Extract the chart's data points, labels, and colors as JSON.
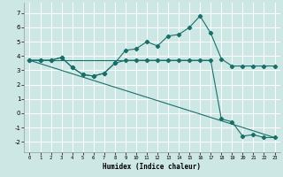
{
  "xlabel": "Humidex (Indice chaleur)",
  "xlim": [
    -0.5,
    23.5
  ],
  "ylim": [
    -2.7,
    7.7
  ],
  "yticks": [
    -2,
    -1,
    0,
    1,
    2,
    3,
    4,
    5,
    6,
    7
  ],
  "xticks": [
    0,
    1,
    2,
    3,
    4,
    5,
    6,
    7,
    8,
    9,
    10,
    11,
    12,
    13,
    14,
    15,
    16,
    17,
    18,
    19,
    20,
    21,
    22,
    23
  ],
  "bg_color": "#cde8e4",
  "grid_color": "#ffffff",
  "line_color": "#1a6e6a",
  "series": [
    {
      "x": [
        0,
        1,
        2,
        3,
        4,
        5,
        6,
        7,
        8,
        9,
        10,
        11,
        12,
        13,
        14,
        15,
        16,
        17,
        18,
        19,
        20,
        21,
        22,
        23
      ],
      "y": [
        3.7,
        3.7,
        3.7,
        3.9,
        3.2,
        2.7,
        2.6,
        2.8,
        3.5,
        4.4,
        4.5,
        5.0,
        4.7,
        5.4,
        5.5,
        6.0,
        6.8,
        5.6,
        3.8,
        3.3,
        3.3,
        3.3,
        3.3,
        3.3
      ],
      "has_markers": true
    },
    {
      "x": [
        0,
        1,
        2,
        3,
        4,
        5,
        6,
        7,
        8,
        9,
        10,
        11,
        12,
        13,
        14,
        15,
        16,
        17,
        18,
        19,
        20,
        21,
        22,
        23
      ],
      "y": [
        3.7,
        3.7,
        3.7,
        3.9,
        3.2,
        2.7,
        2.6,
        2.8,
        3.5,
        3.7,
        3.7,
        3.7,
        3.7,
        3.7,
        3.7,
        3.7,
        3.7,
        3.7,
        -0.4,
        -0.6,
        -1.6,
        -1.5,
        -1.7,
        -1.7
      ],
      "has_markers": true
    },
    {
      "x": [
        0,
        23
      ],
      "y": [
        3.7,
        -1.7
      ],
      "has_markers": false
    },
    {
      "x": [
        0,
        17
      ],
      "y": [
        3.7,
        3.7
      ],
      "has_markers": false
    }
  ]
}
